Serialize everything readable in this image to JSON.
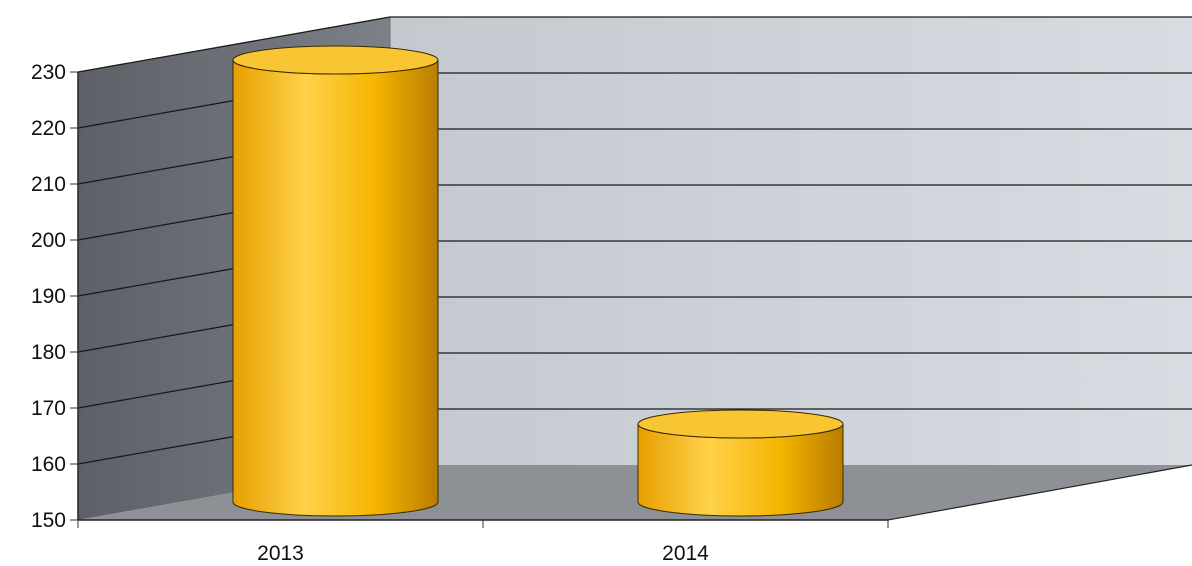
{
  "chart_data": {
    "type": "bar",
    "style": "3d-cylinder",
    "categories": [
      "2013",
      "2014"
    ],
    "series": [
      {
        "values": [
          230,
          165
        ]
      }
    ],
    "ylim": [
      150,
      230
    ],
    "yticks": [
      "150",
      "160",
      "170",
      "180",
      "190",
      "200",
      "210",
      "220",
      "230"
    ],
    "grid": true,
    "legend": "none",
    "colors": {
      "bar": "#f5b400",
      "bar_dark": "#c88a00",
      "bar_top": "#f9c633",
      "back_wall": "#c9cfd5",
      "side_wall": "#6e7278",
      "floor": "#8d9196",
      "gridline": "#1a1a1a"
    }
  }
}
